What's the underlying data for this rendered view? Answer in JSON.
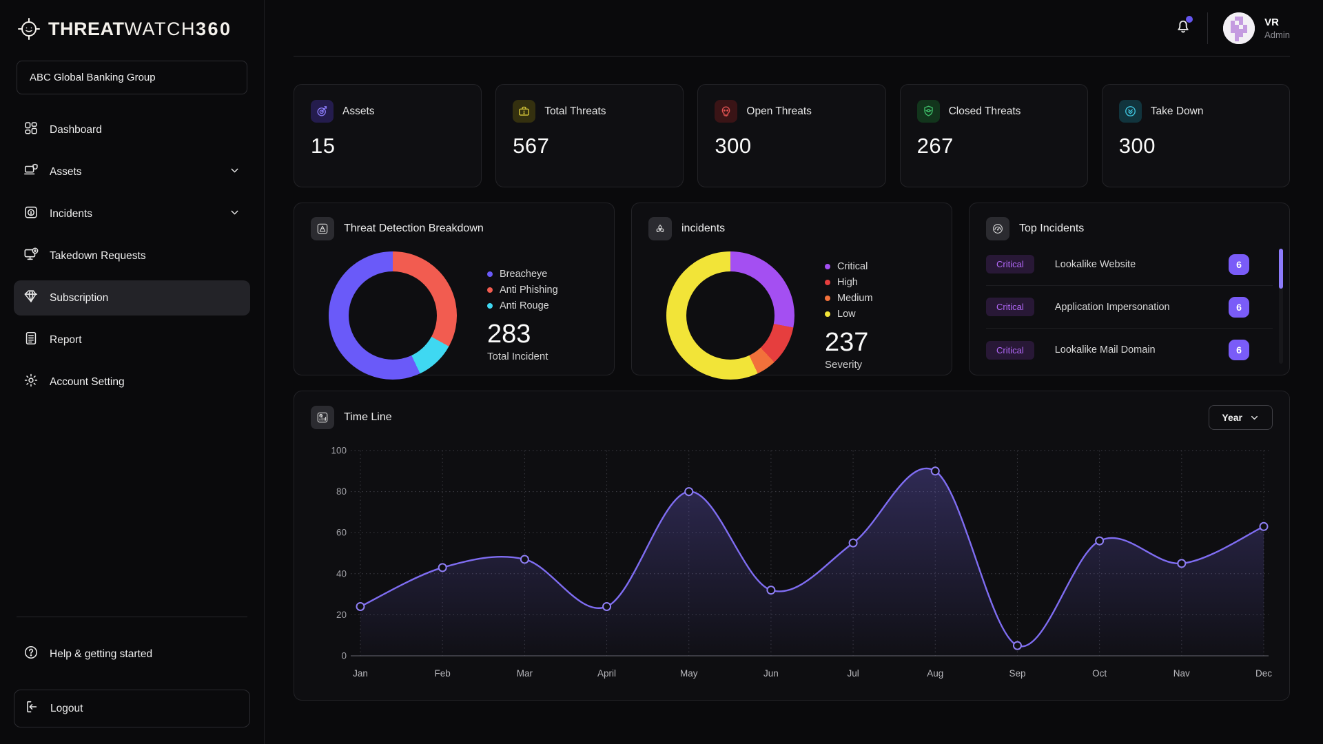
{
  "brand": {
    "threat": "THREAT",
    "watch": "WATCH",
    "suffix": "360"
  },
  "org_selector": {
    "label": "ABC Global Banking Group"
  },
  "sidebar": {
    "items": [
      {
        "id": "dashboard",
        "label": "Dashboard",
        "icon": "dashboard",
        "chevron": false,
        "active": false
      },
      {
        "id": "assets",
        "label": "Assets",
        "icon": "assets",
        "chevron": true,
        "active": false
      },
      {
        "id": "incidents",
        "label": "Incidents",
        "icon": "incidents",
        "chevron": true,
        "active": false
      },
      {
        "id": "takedown-requests",
        "label": "Takedown Requests",
        "icon": "takedown",
        "chevron": false,
        "active": false
      },
      {
        "id": "subscription",
        "label": "Subscription",
        "icon": "subscription",
        "chevron": false,
        "active": true
      },
      {
        "id": "report",
        "label": "Report",
        "icon": "report",
        "chevron": false,
        "active": false
      },
      {
        "id": "account-setting",
        "label": "Account Setting",
        "icon": "settings",
        "chevron": false,
        "active": false
      }
    ],
    "help_label": "Help & getting started",
    "logout_label": "Logout"
  },
  "topbar": {
    "user_initials": "VR",
    "user_role": "Admin"
  },
  "stat_cards": [
    {
      "id": "assets",
      "label": "Assets",
      "value": "15",
      "icon": "target",
      "accent": "#8b7cfa",
      "tint": "#241c4d"
    },
    {
      "id": "total-threats",
      "label": "Total Threats",
      "value": "567",
      "icon": "briefcase",
      "accent": "#d9c93a",
      "tint": "#34300f"
    },
    {
      "id": "open-threats",
      "label": "Open Threats",
      "value": "300",
      "icon": "skull",
      "accent": "#e05252",
      "tint": "#3a1416"
    },
    {
      "id": "closed-threats",
      "label": "Closed Threats",
      "value": "267",
      "icon": "shield",
      "accent": "#3fbf6a",
      "tint": "#12351c"
    },
    {
      "id": "take-down",
      "label": "Take Down",
      "value": "300",
      "icon": "chevrons-down",
      "accent": "#3fc6e0",
      "tint": "#11343d"
    }
  ],
  "panels": {
    "threat_breakdown": {
      "title": "Threat Detection Breakdown",
      "legend_order": [
        "Breacheye",
        "Anti Phishing",
        "Anti Rouge"
      ],
      "total": "283",
      "total_label": "Total Incident"
    },
    "incidents": {
      "title": "incidents",
      "legend_order": [
        "Critical",
        "High",
        "Medium",
        "Low"
      ],
      "total": "237",
      "total_label": "Severity"
    },
    "top_incidents": {
      "title": "Top Incidents",
      "rows": [
        {
          "severity": "Critical",
          "name": "Lookalike Website",
          "count": "6"
        },
        {
          "severity": "Critical",
          "name": "Application Impersonation",
          "count": "6"
        },
        {
          "severity": "Critical",
          "name": "Lookalike Mail Domain",
          "count": "6"
        }
      ]
    },
    "timeline": {
      "title": "Time Line",
      "filter_label": "Year"
    }
  },
  "chart_data": [
    {
      "type": "pie",
      "title": "Threat Detection Breakdown",
      "donut": true,
      "start": "top-clockwise",
      "total": 283,
      "total_label": "Total Incident",
      "segments": [
        {
          "label": "Anti Phishing",
          "pct": 33,
          "color": "#f25c50"
        },
        {
          "label": "Anti Rouge",
          "pct": 10,
          "color": "#3fd8f2"
        },
        {
          "label": "Breacheye",
          "pct": 57,
          "color": "#6a5af9"
        }
      ]
    },
    {
      "type": "pie",
      "title": "incidents",
      "donut": true,
      "start": "top-clockwise",
      "total": 237,
      "total_label": "Severity",
      "segments": [
        {
          "label": "Critical",
          "pct": 28,
          "color": "#a44ff2"
        },
        {
          "label": "High",
          "pct": 10,
          "color": "#e63e3e"
        },
        {
          "label": "Medium",
          "pct": 5,
          "color": "#f2713b"
        },
        {
          "label": "Low",
          "pct": 57,
          "color": "#f2e438"
        }
      ]
    },
    {
      "type": "area",
      "title": "Time Line",
      "x": [
        "Jan",
        "Feb",
        "Mar",
        "April",
        "May",
        "Jun",
        "Jul",
        "Aug",
        "Sep",
        "Oct",
        "Nav",
        "Dec"
      ],
      "values": [
        24,
        43,
        47,
        24,
        80,
        32,
        55,
        90,
        5,
        56,
        45,
        63
      ],
      "ylim": [
        0,
        100
      ],
      "yticks": [
        0,
        20,
        40,
        60,
        80,
        100
      ],
      "line_color": "#7f6df2",
      "grid": "dotted",
      "legend": null
    }
  ]
}
